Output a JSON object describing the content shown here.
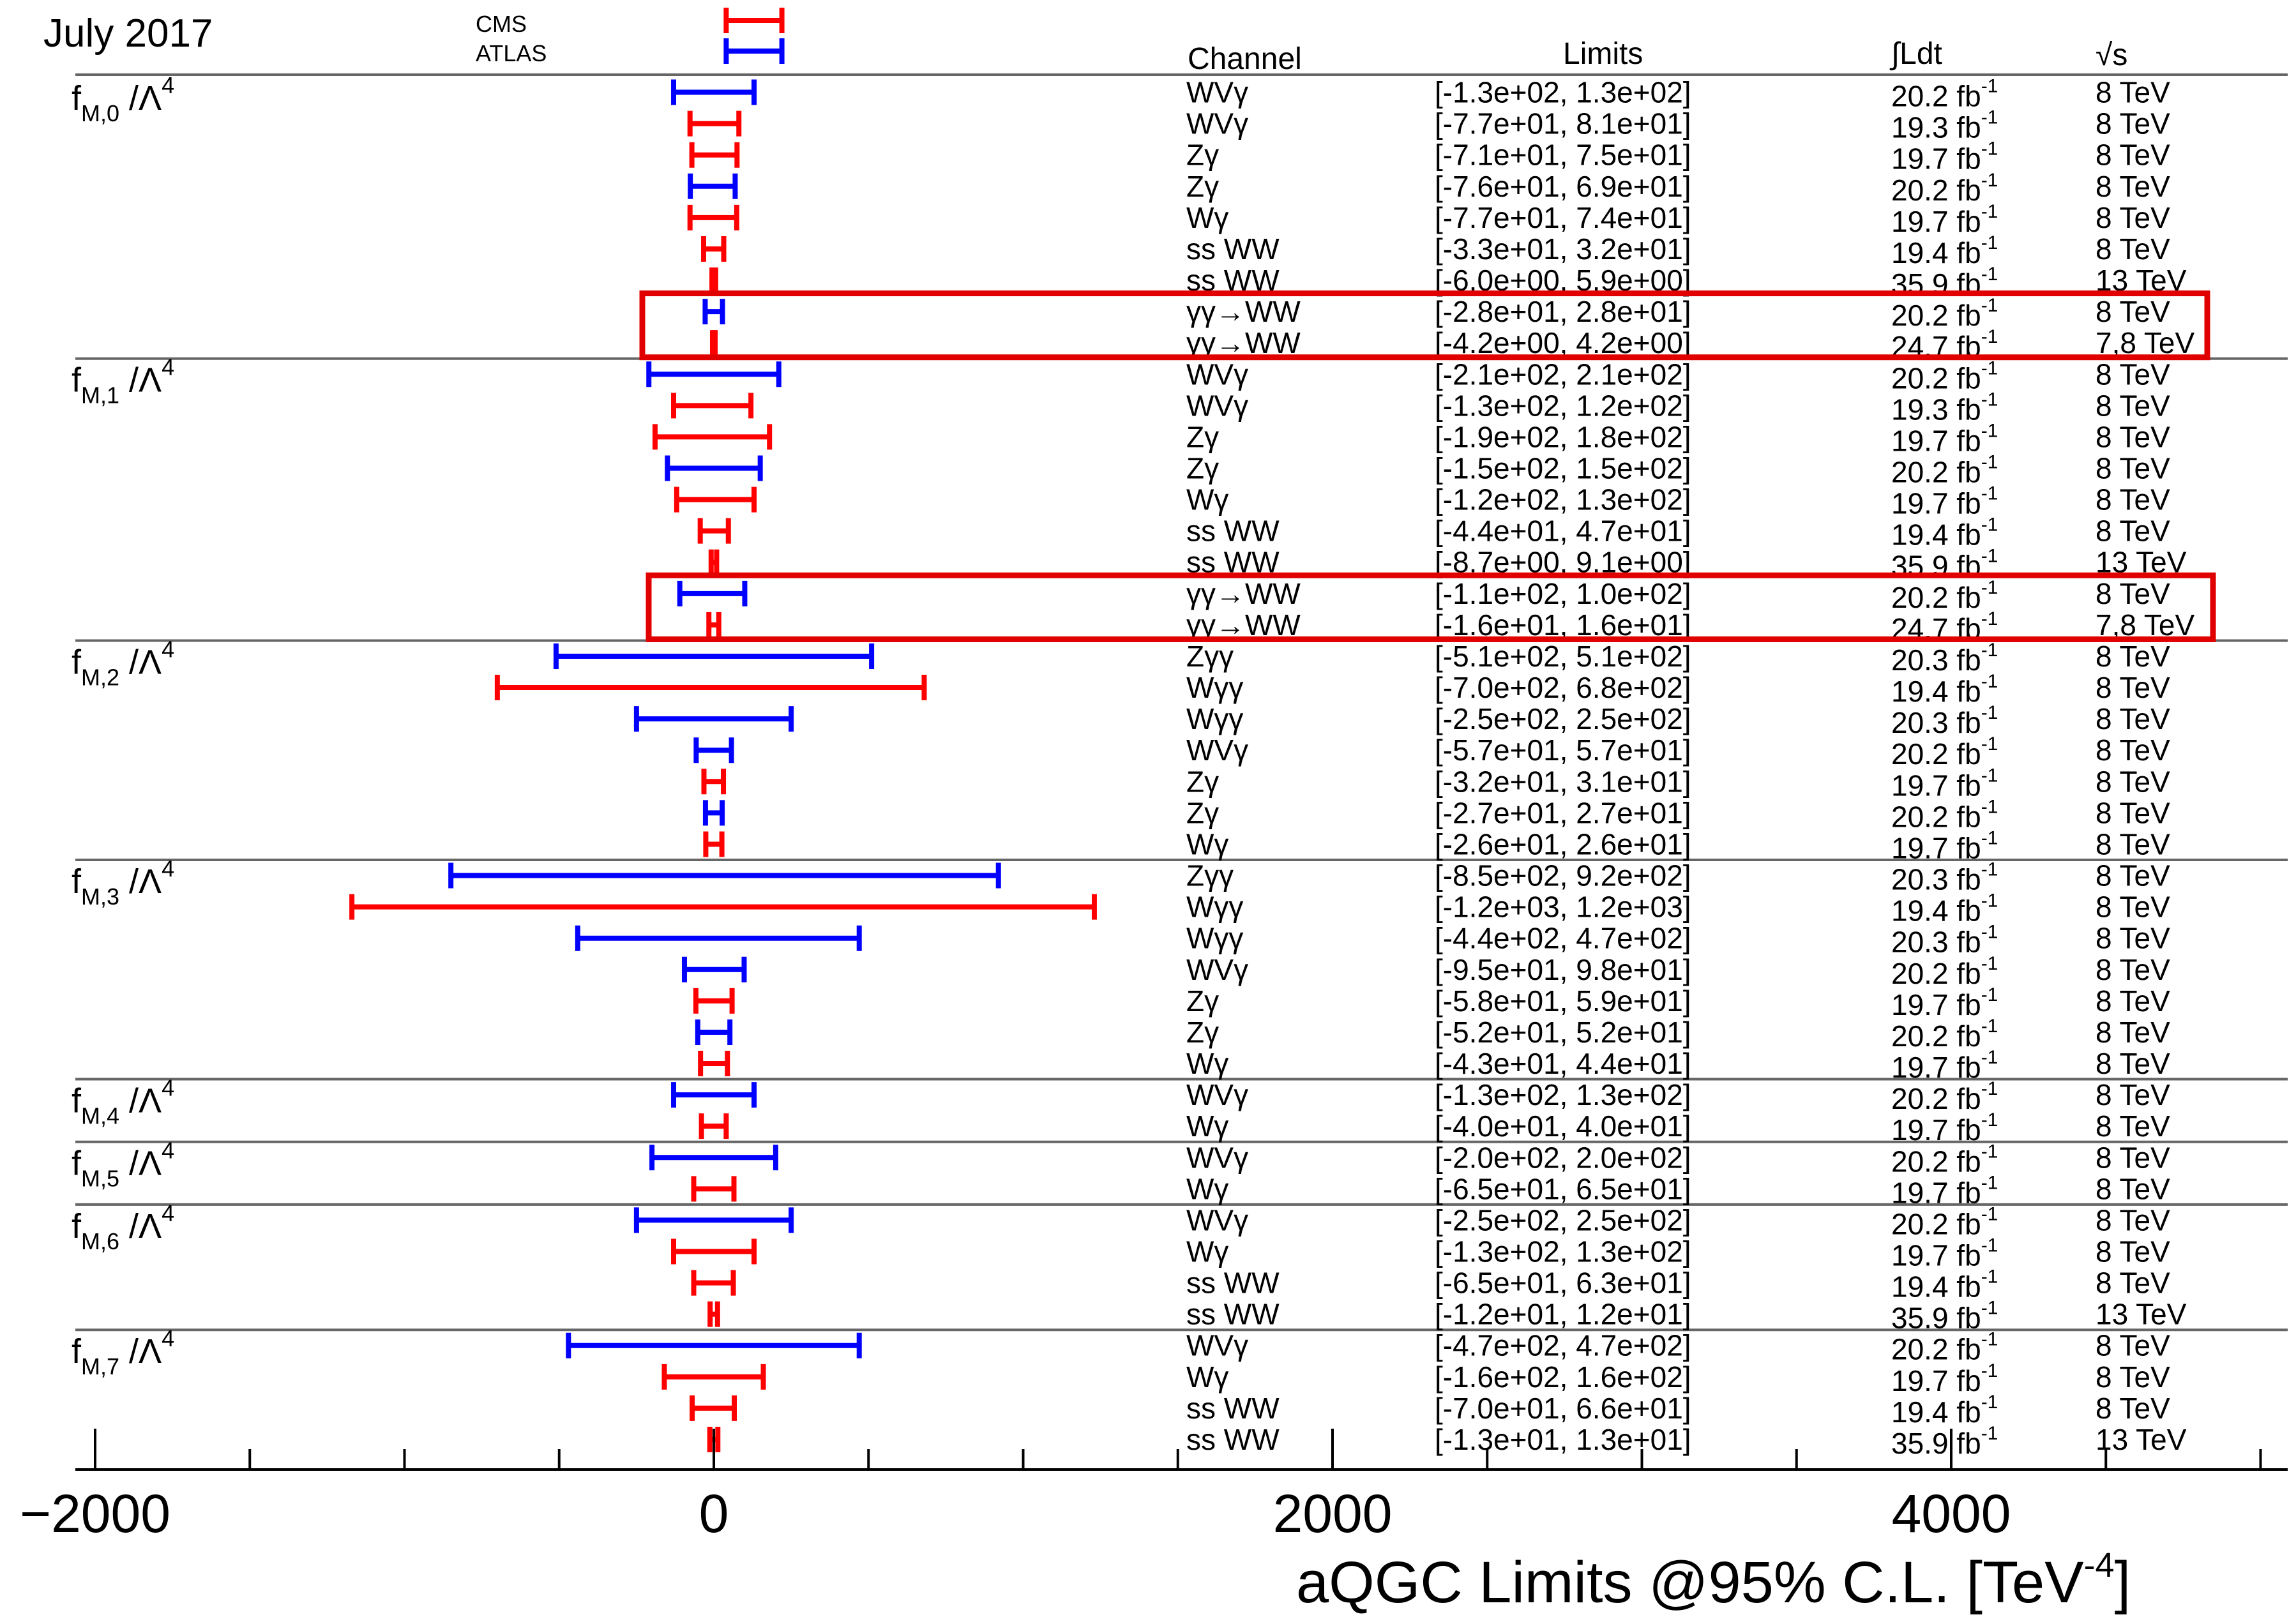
{
  "chart_data": {
    "type": "interval",
    "date_label": "July 2017",
    "legend": [
      {
        "name": "CMS",
        "color": "#ff0000"
      },
      {
        "name": "ATLAS",
        "color": "#0000ff"
      }
    ],
    "colors": {
      "CMS": "#ff0000",
      "ATLAS": "#0000ff",
      "highlight_box": "#e00000",
      "separator": "#666666"
    },
    "headers": {
      "channel": "Channel",
      "limits": "Limits",
      "lumi": "∫Ldt",
      "energy": "√s"
    },
    "xlabel": "aQGC Limits @95% C.L. [TeV",
    "xlabel_exponent": "-4",
    "xlim": [
      -2000,
      5000
    ],
    "x_tick_labels": [
      {
        "value": -2000,
        "label": "−2000"
      },
      {
        "value": 0,
        "label": "0"
      },
      {
        "value": 2000,
        "label": "2000"
      },
      {
        "value": 4000,
        "label": "4000"
      }
    ],
    "groups": [
      {
        "name": "fM,0",
        "label": "f",
        "sub": "M,0",
        "suffix": " /Λ",
        "power": "4",
        "highlight_rows": [
          7,
          8
        ],
        "rows": [
          {
            "exp": "ATLAS",
            "channel": "WVγ",
            "limits": "[-1.3e+02, 1.3e+02]",
            "lumi": "20.2 fb",
            "energy": "8 TeV",
            "low": -130,
            "high": 130
          },
          {
            "exp": "CMS",
            "channel": "WVγ",
            "limits": "[-7.7e+01, 8.1e+01]",
            "lumi": "19.3 fb",
            "energy": "8 TeV",
            "low": -77,
            "high": 81
          },
          {
            "exp": "CMS",
            "channel": "Zγ",
            "limits": "[-7.1e+01, 7.5e+01]",
            "lumi": "19.7 fb",
            "energy": "8 TeV",
            "low": -71,
            "high": 75
          },
          {
            "exp": "ATLAS",
            "channel": "Zγ",
            "limits": "[-7.6e+01, 6.9e+01]",
            "lumi": "20.2 fb",
            "energy": "8 TeV",
            "low": -76,
            "high": 69
          },
          {
            "exp": "CMS",
            "channel": "Wγ",
            "limits": "[-7.7e+01, 7.4e+01]",
            "lumi": "19.7 fb",
            "energy": "8 TeV",
            "low": -77,
            "high": 74
          },
          {
            "exp": "CMS",
            "channel": "ss WW",
            "limits": "[-3.3e+01, 3.2e+01]",
            "lumi": "19.4 fb",
            "energy": "8 TeV",
            "low": -33,
            "high": 32
          },
          {
            "exp": "CMS",
            "channel": "ss WW",
            "limits": "[-6.0e+00, 5.9e+00]",
            "lumi": "35.9 fb",
            "energy": "13 TeV",
            "low": -6,
            "high": 5.9
          },
          {
            "exp": "ATLAS",
            "channel": "γγ→WW",
            "limits": "[-2.8e+01, 2.8e+01]",
            "lumi": "20.2 fb",
            "energy": "8 TeV",
            "low": -28,
            "high": 28
          },
          {
            "exp": "CMS",
            "channel": "γγ→WW",
            "limits": "[-4.2e+00, 4.2e+00]",
            "lumi": "24.7 fb",
            "energy": "7,8 TeV",
            "low": -4.2,
            "high": 4.2
          }
        ]
      },
      {
        "name": "fM,1",
        "label": "f",
        "sub": "M,1",
        "suffix": " /Λ",
        "power": "4",
        "highlight_rows": [
          7,
          8
        ],
        "rows": [
          {
            "exp": "ATLAS",
            "channel": "WVγ",
            "limits": "[-2.1e+02, 2.1e+02]",
            "lumi": "20.2 fb",
            "energy": "8 TeV",
            "low": -210,
            "high": 210
          },
          {
            "exp": "CMS",
            "channel": "WVγ",
            "limits": "[-1.3e+02, 1.2e+02]",
            "lumi": "19.3 fb",
            "energy": "8 TeV",
            "low": -130,
            "high": 120
          },
          {
            "exp": "CMS",
            "channel": "Zγ",
            "limits": "[-1.9e+02, 1.8e+02]",
            "lumi": "19.7 fb",
            "energy": "8 TeV",
            "low": -190,
            "high": 180
          },
          {
            "exp": "ATLAS",
            "channel": "Zγ",
            "limits": "[-1.5e+02, 1.5e+02]",
            "lumi": "20.2 fb",
            "energy": "8 TeV",
            "low": -150,
            "high": 150
          },
          {
            "exp": "CMS",
            "channel": "Wγ",
            "limits": "[-1.2e+02, 1.3e+02]",
            "lumi": "19.7 fb",
            "energy": "8 TeV",
            "low": -120,
            "high": 130
          },
          {
            "exp": "CMS",
            "channel": "ss WW",
            "limits": "[-4.4e+01, 4.7e+01]",
            "lumi": "19.4 fb",
            "energy": "8 TeV",
            "low": -44,
            "high": 47
          },
          {
            "exp": "CMS",
            "channel": "ss WW",
            "limits": "[-8.7e+00, 9.1e+00]",
            "lumi": "35.9 fb",
            "energy": "13 TeV",
            "low": -8.7,
            "high": 9.1
          },
          {
            "exp": "ATLAS",
            "channel": "γγ→WW",
            "limits": "[-1.1e+02, 1.0e+02]",
            "lumi": "20.2 fb",
            "energy": "8 TeV",
            "low": -110,
            "high": 100
          },
          {
            "exp": "CMS",
            "channel": "γγ→WW",
            "limits": "[-1.6e+01, 1.6e+01]",
            "lumi": "24.7 fb",
            "energy": "7,8 TeV",
            "low": -16,
            "high": 16
          }
        ]
      },
      {
        "name": "fM,2",
        "label": "f",
        "sub": "M,2",
        "suffix": " /Λ",
        "power": "4",
        "highlight_rows": [],
        "rows": [
          {
            "exp": "ATLAS",
            "channel": "Zγγ",
            "limits": "[-5.1e+02, 5.1e+02]",
            "lumi": "20.3 fb",
            "energy": "8 TeV",
            "low": -510,
            "high": 510
          },
          {
            "exp": "CMS",
            "channel": "Wγγ",
            "limits": "[-7.0e+02, 6.8e+02]",
            "lumi": "19.4 fb",
            "energy": "8 TeV",
            "low": -700,
            "high": 680
          },
          {
            "exp": "ATLAS",
            "channel": "Wγγ",
            "limits": "[-2.5e+02, 2.5e+02]",
            "lumi": "20.3 fb",
            "energy": "8 TeV",
            "low": -250,
            "high": 250
          },
          {
            "exp": "ATLAS",
            "channel": "WVγ",
            "limits": "[-5.7e+01, 5.7e+01]",
            "lumi": "20.2 fb",
            "energy": "8 TeV",
            "low": -57,
            "high": 57
          },
          {
            "exp": "CMS",
            "channel": "Zγ",
            "limits": "[-3.2e+01, 3.1e+01]",
            "lumi": "19.7 fb",
            "energy": "8 TeV",
            "low": -32,
            "high": 31
          },
          {
            "exp": "ATLAS",
            "channel": "Zγ",
            "limits": "[-2.7e+01, 2.7e+01]",
            "lumi": "20.2 fb",
            "energy": "8 TeV",
            "low": -27,
            "high": 27
          },
          {
            "exp": "CMS",
            "channel": "Wγ",
            "limits": "[-2.6e+01, 2.6e+01]",
            "lumi": "19.7 fb",
            "energy": "8 TeV",
            "low": -26,
            "high": 26
          }
        ]
      },
      {
        "name": "fM,3",
        "label": "f",
        "sub": "M,3",
        "suffix": " /Λ",
        "power": "4",
        "highlight_rows": [],
        "rows": [
          {
            "exp": "ATLAS",
            "channel": "Zγγ",
            "limits": "[-8.5e+02, 9.2e+02]",
            "lumi": "20.3 fb",
            "energy": "8 TeV",
            "low": -850,
            "high": 920
          },
          {
            "exp": "CMS",
            "channel": "Wγγ",
            "limits": "[-1.2e+03, 1.2e+03]",
            "lumi": "19.4 fb",
            "energy": "8 TeV",
            "low": -1170,
            "high": 1230
          },
          {
            "exp": "ATLAS",
            "channel": "Wγγ",
            "limits": "[-4.4e+02, 4.7e+02]",
            "lumi": "20.3 fb",
            "energy": "8 TeV",
            "low": -440,
            "high": 470
          },
          {
            "exp": "ATLAS",
            "channel": "WVγ",
            "limits": "[-9.5e+01, 9.8e+01]",
            "lumi": "20.2 fb",
            "energy": "8 TeV",
            "low": -95,
            "high": 98
          },
          {
            "exp": "CMS",
            "channel": "Zγ",
            "limits": "[-5.8e+01, 5.9e+01]",
            "lumi": "19.7 fb",
            "energy": "8 TeV",
            "low": -58,
            "high": 59
          },
          {
            "exp": "ATLAS",
            "channel": "Zγ",
            "limits": "[-5.2e+01, 5.2e+01]",
            "lumi": "20.2 fb",
            "energy": "8 TeV",
            "low": -52,
            "high": 52
          },
          {
            "exp": "CMS",
            "channel": "Wγ",
            "limits": "[-4.3e+01, 4.4e+01]",
            "lumi": "19.7 fb",
            "energy": "8 TeV",
            "low": -43,
            "high": 44
          }
        ]
      },
      {
        "name": "fM,4",
        "label": "f",
        "sub": "M,4",
        "suffix": " /Λ",
        "power": "4",
        "highlight_rows": [],
        "rows": [
          {
            "exp": "ATLAS",
            "channel": "WVγ",
            "limits": "[-1.3e+02, 1.3e+02]",
            "lumi": "20.2 fb",
            "energy": "8 TeV",
            "low": -130,
            "high": 130
          },
          {
            "exp": "CMS",
            "channel": "Wγ",
            "limits": "[-4.0e+01, 4.0e+01]",
            "lumi": "19.7 fb",
            "energy": "8 TeV",
            "low": -40,
            "high": 40
          }
        ]
      },
      {
        "name": "fM,5",
        "label": "f",
        "sub": "M,5",
        "suffix": " /Λ",
        "power": "4",
        "highlight_rows": [],
        "rows": [
          {
            "exp": "ATLAS",
            "channel": "WVγ",
            "limits": "[-2.0e+02, 2.0e+02]",
            "lumi": "20.2 fb",
            "energy": "8 TeV",
            "low": -200,
            "high": 200
          },
          {
            "exp": "CMS",
            "channel": "Wγ",
            "limits": "[-6.5e+01, 6.5e+01]",
            "lumi": "19.7 fb",
            "energy": "8 TeV",
            "low": -65,
            "high": 65
          }
        ]
      },
      {
        "name": "fM,6",
        "label": "f",
        "sub": "M,6",
        "suffix": " /Λ",
        "power": "4",
        "highlight_rows": [],
        "rows": [
          {
            "exp": "ATLAS",
            "channel": "WVγ",
            "limits": "[-2.5e+02, 2.5e+02]",
            "lumi": "20.2 fb",
            "energy": "8 TeV",
            "low": -250,
            "high": 250
          },
          {
            "exp": "CMS",
            "channel": "Wγ",
            "limits": "[-1.3e+02, 1.3e+02]",
            "lumi": "19.7 fb",
            "energy": "8 TeV",
            "low": -130,
            "high": 130
          },
          {
            "exp": "CMS",
            "channel": "ss WW",
            "limits": "[-6.5e+01, 6.3e+01]",
            "lumi": "19.4 fb",
            "energy": "8 TeV",
            "low": -65,
            "high": 63
          },
          {
            "exp": "CMS",
            "channel": "ss WW",
            "limits": "[-1.2e+01, 1.2e+01]",
            "lumi": "35.9 fb",
            "energy": "13 TeV",
            "low": -12,
            "high": 12
          }
        ]
      },
      {
        "name": "fM,7",
        "label": "f",
        "sub": "M,7",
        "suffix": " /Λ",
        "power": "4",
        "highlight_rows": [],
        "rows": [
          {
            "exp": "ATLAS",
            "channel": "WVγ",
            "limits": "[-4.7e+02, 4.7e+02]",
            "lumi": "20.2 fb",
            "energy": "8 TeV",
            "low": -470,
            "high": 470
          },
          {
            "exp": "CMS",
            "channel": "Wγ",
            "limits": "[-1.6e+02, 1.6e+02]",
            "lumi": "19.7 fb",
            "energy": "8 TeV",
            "low": -160,
            "high": 160
          },
          {
            "exp": "CMS",
            "channel": "ss WW",
            "limits": "[-7.0e+01, 6.6e+01]",
            "lumi": "19.4 fb",
            "energy": "8 TeV",
            "low": -70,
            "high": 66
          },
          {
            "exp": "CMS",
            "channel": "ss WW",
            "limits": "[-1.3e+01, 1.3e+01]",
            "lumi": "35.9 fb",
            "energy": "13 TeV",
            "low": -13,
            "high": 13
          }
        ]
      }
    ],
    "lumi_unit_exponent": "-1"
  }
}
